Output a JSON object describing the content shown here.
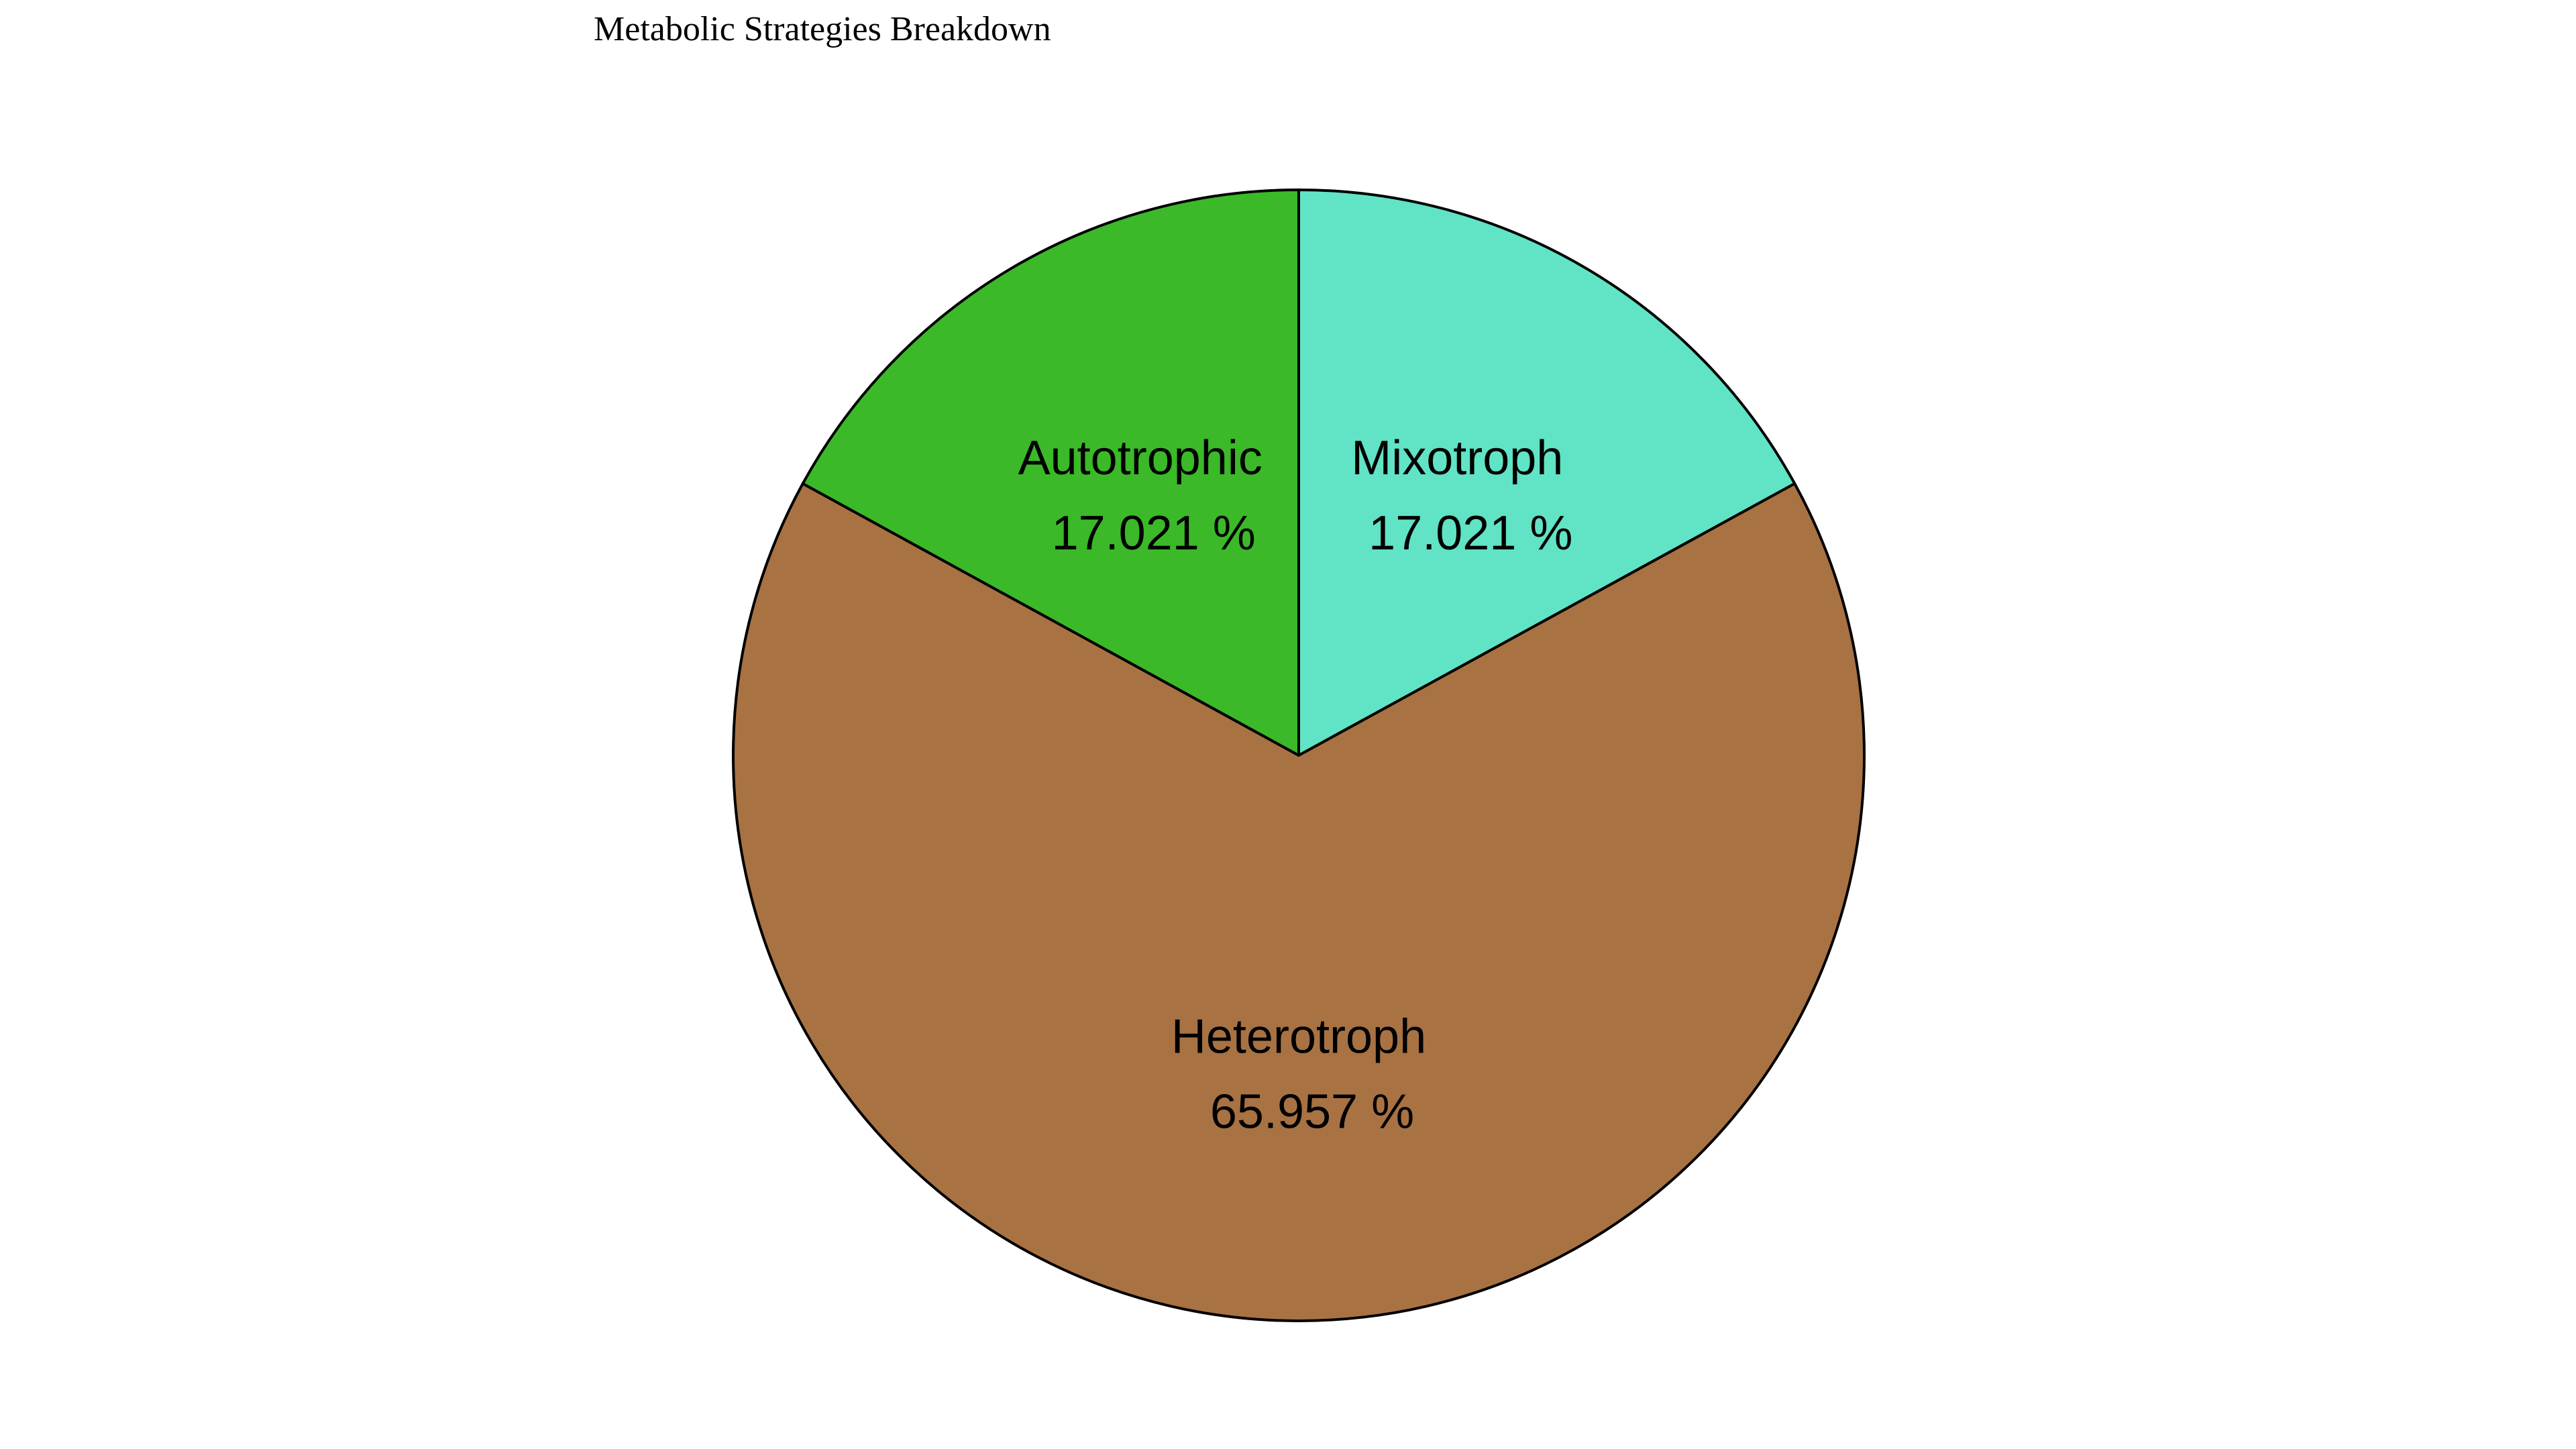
{
  "chart_data": {
    "type": "pie",
    "title": "Metabolic Strategies Breakdown",
    "slices": [
      {
        "label": "Mixotroph",
        "value": 17.021,
        "pct_label": "17.021 %",
        "color": "#61e3c5"
      },
      {
        "label": "Heterotroph",
        "value": 65.957,
        "pct_label": "65.957 %",
        "color": "#a87243"
      },
      {
        "label": "Autotrophic",
        "value": 17.021,
        "pct_label": "17.021 %",
        "color": "#3bb929"
      }
    ],
    "start_angle": "top (12 o'clock)",
    "direction": "clockwise",
    "edge_color": "#000000"
  }
}
